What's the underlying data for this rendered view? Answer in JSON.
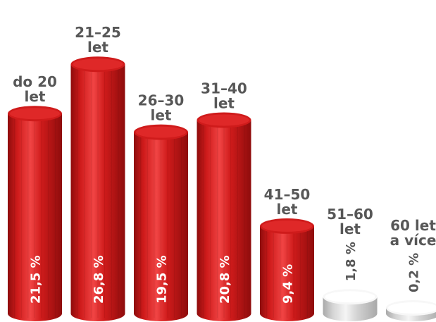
{
  "chart_data": {
    "type": "bar",
    "style": "3d-cylinder",
    "categories": [
      [
        "do 20",
        "let"
      ],
      [
        "21–25",
        "let"
      ],
      [
        "26–30",
        "let"
      ],
      [
        "31–40",
        "let"
      ],
      [
        "41–50",
        "let"
      ],
      [
        "51–60",
        "let"
      ],
      [
        "60 let",
        "a více"
      ]
    ],
    "values": [
      21.5,
      26.8,
      19.5,
      20.8,
      9.4,
      1.8,
      0.2
    ],
    "value_labels": [
      "21,5 %",
      "26,8 %",
      "19,5 %",
      "20,8 %",
      "9,4 %",
      "1,8 %",
      "0,2 %"
    ],
    "title": "",
    "xlabel": "",
    "ylabel": "",
    "grid": false,
    "colors": {
      "main": "#cf1b1b",
      "main_light": "#f04444",
      "main_dark": "#8e0c0c",
      "minor": "#d4d4d4",
      "minor_light": "#f5f5f5",
      "minor_dark": "#a9a9a9",
      "text": "#575757"
    },
    "minor_threshold": 5
  }
}
